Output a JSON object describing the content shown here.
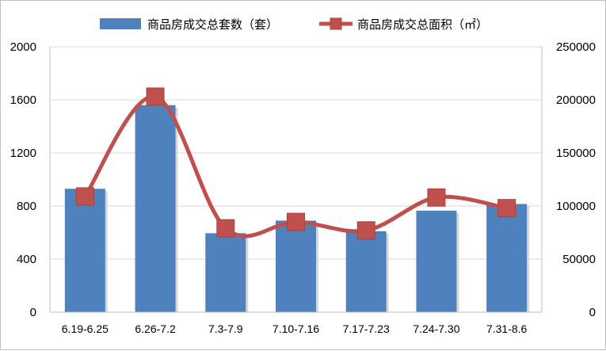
{
  "chart_data": {
    "type": "bar",
    "categories": [
      "6.19-6.25",
      "6.26-7.2",
      "7.3-7.9",
      "7.10-7.16",
      "7.17-7.23",
      "7.24-7.30",
      "7.31-8.6"
    ],
    "series": [
      {
        "name": "商品房成交总套数（套）",
        "type": "bar",
        "axis": "left",
        "color": "#4F81BD",
        "values": [
          930,
          1560,
          595,
          690,
          610,
          765,
          815
        ]
      },
      {
        "name": "商品房成交总面积（㎡）",
        "type": "line",
        "axis": "right",
        "color": "#C0504D",
        "marker": "square",
        "smooth": true,
        "values": [
          109000,
          203000,
          79000,
          85000,
          77000,
          108000,
          98000
        ]
      }
    ],
    "y_left": {
      "ylim": [
        0,
        2000
      ],
      "ticks": [
        "0",
        "400",
        "800",
        "1200",
        "1600",
        "2000"
      ]
    },
    "y_right": {
      "ylim": [
        0,
        250000
      ],
      "ticks": [
        "0",
        "50000",
        "100000",
        "150000",
        "200000",
        "250000"
      ]
    },
    "grid": true,
    "legend_position": "top"
  }
}
